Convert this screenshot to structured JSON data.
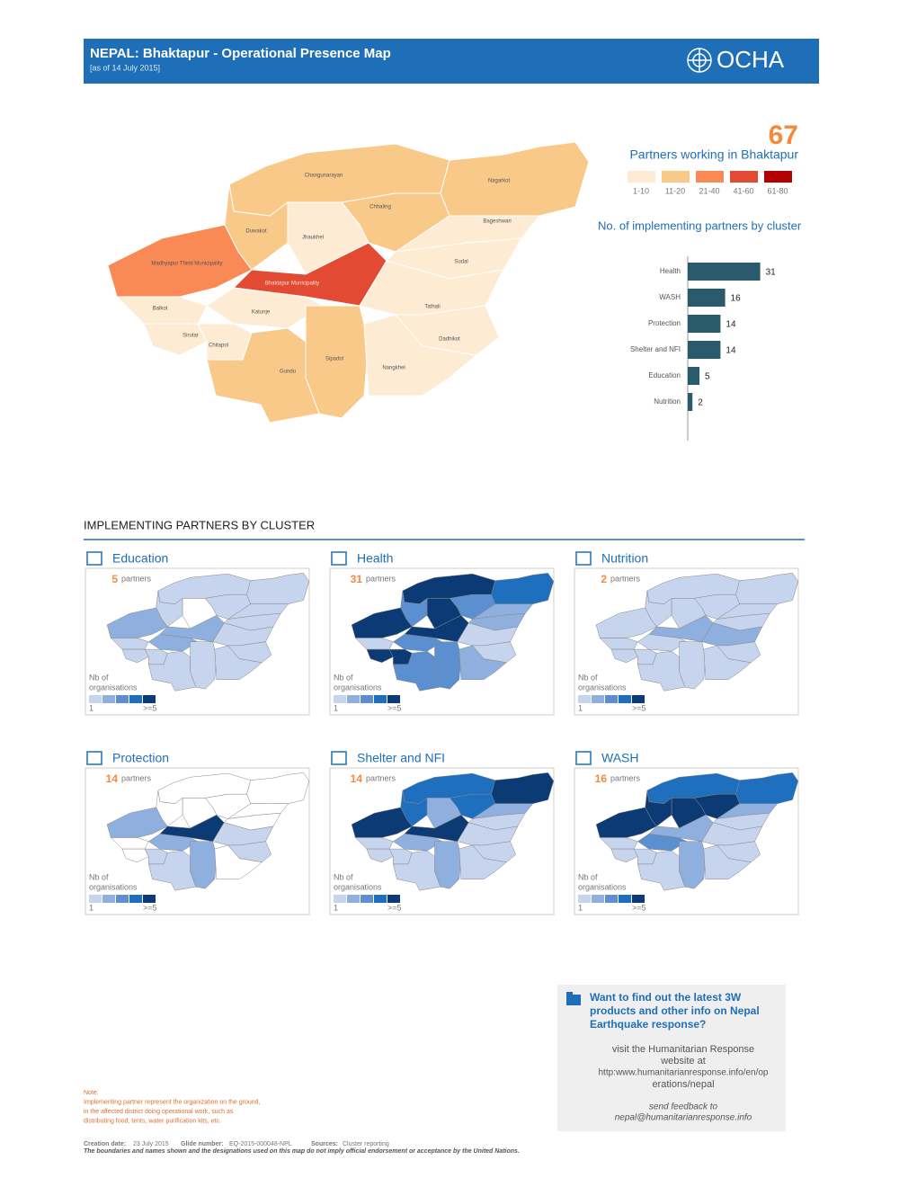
{
  "header": {
    "title": "NEPAL: Bhaktapur - Operational Presence Map",
    "subtitle": "[as of 14 July 2015]",
    "logo": "OCHA"
  },
  "summary": {
    "total": 67,
    "label": "Partners working in Bhaktapur",
    "legend": [
      {
        "label": "1-10",
        "color": "#fdebd4"
      },
      {
        "label": "11-20",
        "color": "#f9c98a"
      },
      {
        "label": "21-40",
        "color": "#f98a56"
      },
      {
        "label": "41-60",
        "color": "#e34a33"
      },
      {
        "label": "61-80",
        "color": "#b30000"
      }
    ]
  },
  "map": {
    "regions": [
      {
        "name": "Changunarayan",
        "color": "#f9c98a"
      },
      {
        "name": "Nagarkot",
        "color": "#f9c98a"
      },
      {
        "name": "Chhaling",
        "color": "#f9c98a"
      },
      {
        "name": "Bageshwari",
        "color": "#fdebd4"
      },
      {
        "name": "Duwakot",
        "color": "#f9c98a"
      },
      {
        "name": "Jhaukhel",
        "color": "#fdebd4"
      },
      {
        "name": "Madhyapur Thimi Municipality",
        "color": "#f98a56"
      },
      {
        "name": "Bhaktapur Municipality",
        "color": "#e34a33"
      },
      {
        "name": "Sudal",
        "color": "#fdebd4"
      },
      {
        "name": "Balkot",
        "color": "#fdebd4"
      },
      {
        "name": "Katunje",
        "color": "#fdebd4"
      },
      {
        "name": "Tathali",
        "color": "#fdebd4"
      },
      {
        "name": "Sirutar",
        "color": "#fdebd4"
      },
      {
        "name": "Dadhikot",
        "color": "#fdebd4"
      },
      {
        "name": "Chitapol",
        "color": "#fdebd4"
      },
      {
        "name": "Sipadol",
        "color": "#f9c98a"
      },
      {
        "name": "Nangkhel",
        "color": "#fdebd4"
      },
      {
        "name": "Gundu",
        "color": "#f9c98a"
      }
    ]
  },
  "chart_data": {
    "type": "bar",
    "orientation": "horizontal",
    "title": "No. of implementing partners by cluster",
    "categories": [
      "Health",
      "WASH",
      "Protection",
      "Shelter and NFI",
      "Education",
      "Nutrition"
    ],
    "values": [
      31,
      16,
      14,
      14,
      5,
      2
    ],
    "color": "#2a5b6c",
    "xlim": [
      0,
      35
    ]
  },
  "section_title": "IMPLEMENTING PARTNERS BY CLUSTER",
  "cluster_maps": {
    "partners_word": "partners",
    "legend_title": [
      "Nb of",
      "organisations"
    ],
    "legend_min": "1",
    "legend_max": ">=5",
    "legend_colors": [
      "#c6d4ee",
      "#8fb0df",
      "#5b8fd0",
      "#1f6fbf",
      "#0b3a75"
    ],
    "items": [
      {
        "name": "Education",
        "count": 5,
        "region_colors": [
          "#c6d4ee",
          "#c6d4ee",
          "#c6d4ee",
          "#c6d4ee",
          "#c6d4ee",
          "#ffffff",
          "#8fb0df",
          "#8fb0df",
          "#c6d4ee",
          "#c6d4ee",
          "#8fb0df",
          "#c6d4ee",
          "#c6d4ee",
          "#c6d4ee",
          "#c6d4ee",
          "#c6d4ee",
          "#c6d4ee",
          "#c6d4ee"
        ]
      },
      {
        "name": "Health",
        "count": 31,
        "region_colors": [
          "#0b3a75",
          "#1f6fbf",
          "#5b8fd0",
          "#8fb0df",
          "#5b8fd0",
          "#0b3a75",
          "#0b3a75",
          "#0b3a75",
          "#8fb0df",
          "#c6d4ee",
          "#5b8fd0",
          "#c6d4ee",
          "#0b3a75",
          "#0b3a75",
          "#c6d4ee",
          "#5b8fd0",
          "#8fb0df",
          "#5b8fd0"
        ]
      },
      {
        "name": "Nutrition",
        "count": 2,
        "region_colors": [
          "#c6d4ee",
          "#c6d4ee",
          "#c6d4ee",
          "#c6d4ee",
          "#c6d4ee",
          "#c6d4ee",
          "#c6d4ee",
          "#8fb0df",
          "#c6d4ee",
          "#c6d4ee",
          "#c6d4ee",
          "#8fb0df",
          "#c6d4ee",
          "#c6d4ee",
          "#c6d4ee",
          "#c6d4ee",
          "#c6d4ee",
          "#c6d4ee"
        ]
      },
      {
        "name": "Protection",
        "count": 14,
        "region_colors": [
          "#ffffff",
          "#ffffff",
          "#ffffff",
          "#ffffff",
          "#ffffff",
          "#ffffff",
          "#8fb0df",
          "#0b3a75",
          "#ffffff",
          "#ffffff",
          "#8fb0df",
          "#c6d4ee",
          "#ffffff",
          "#c6d4ee",
          "#c6d4ee",
          "#8fb0df",
          "#ffffff",
          "#c6d4ee"
        ]
      },
      {
        "name": "Shelter and NFI",
        "count": 14,
        "region_colors": [
          "#1f6fbf",
          "#0b3a75",
          "#1f6fbf",
          "#8fb0df",
          "#1f6fbf",
          "#8fb0df",
          "#0b3a75",
          "#0b3a75",
          "#c6d4ee",
          "#c6d4ee",
          "#8fb0df",
          "#c6d4ee",
          "#c6d4ee",
          "#c6d4ee",
          "#c6d4ee",
          "#8fb0df",
          "#c6d4ee",
          "#c6d4ee"
        ]
      },
      {
        "name": "WASH",
        "count": 16,
        "region_colors": [
          "#1f6fbf",
          "#1f6fbf",
          "#0b3a75",
          "#8fb0df",
          "#0b3a75",
          "#0b3a75",
          "#0b3a75",
          "#8fb0df",
          "#c6d4ee",
          "#c6d4ee",
          "#5b8fd0",
          "#c6d4ee",
          "#c6d4ee",
          "#c6d4ee",
          "#c6d4ee",
          "#8fb0df",
          "#c6d4ee",
          "#c6d4ee"
        ]
      }
    ]
  },
  "info_box": {
    "heading": [
      "Want to find out the latest 3W",
      "products and other info on Nepal",
      "Earthquake response?"
    ],
    "visit": [
      "visit the Humanitarian Response",
      "website at",
      "http:www.humanitarianresponse.info/en/op",
      "erations/nepal"
    ],
    "feedback": [
      "send feedback to",
      "nepal@humanitarianresponse.info"
    ]
  },
  "note": [
    "Note:",
    "Implementing partner represent the organization on the ground,",
    "in the affected district doing operational work, such as",
    "distributing food, tents, water purification kits, etc."
  ],
  "footer": {
    "creation_label": "Creation date:",
    "creation": "23 July 2015",
    "glide_label": "Glide number:",
    "glide": "EQ-2015-000048-NPL",
    "sources_label": "Sources:",
    "sources": "Cluster reporting",
    "disclaimer": "The boundaries and names shown and the designations used on this map do not imply official endorsement or acceptance by the United Nations."
  }
}
